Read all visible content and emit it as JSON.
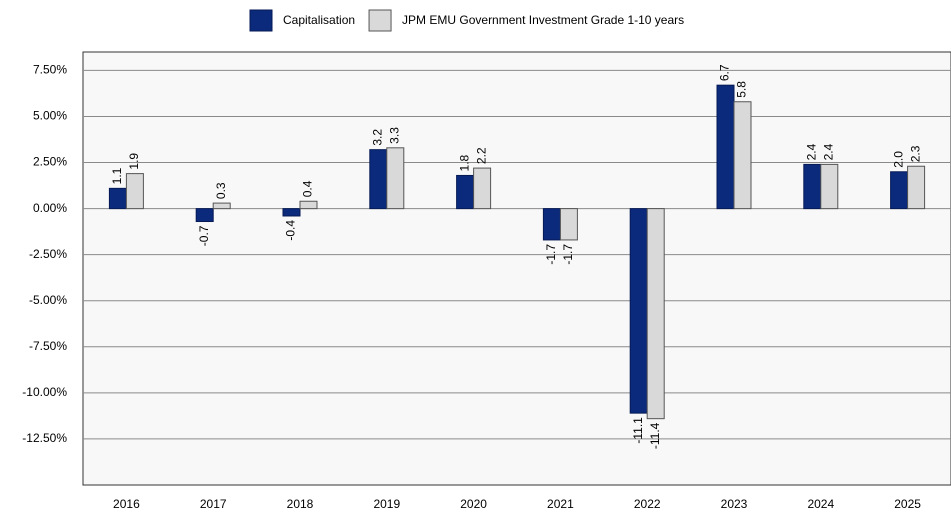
{
  "chart_data": {
    "type": "bar",
    "categories": [
      "2016",
      "2017",
      "2018",
      "2019",
      "2020",
      "2021",
      "2022",
      "2023",
      "2024",
      "2025"
    ],
    "series": [
      {
        "name": "Capitalisation",
        "color": "#0b2a7c",
        "values": [
          1.1,
          -0.7,
          -0.4,
          3.2,
          1.8,
          -1.7,
          -11.1,
          6.7,
          2.4,
          2.0
        ],
        "value_labels": [
          "1.1",
          "-0.7",
          "-0.4",
          "3.2",
          "1.8",
          "-1.7",
          "-11.1",
          "6.7",
          "2.4",
          "2.0"
        ]
      },
      {
        "name": "JPM EMU Government Investment Grade 1-10 years",
        "color": "#d9d9d9",
        "values": [
          1.9,
          0.3,
          0.4,
          3.3,
          2.2,
          -1.7,
          -11.4,
          5.8,
          2.4,
          2.3
        ],
        "value_labels": [
          "1.9",
          "0.3",
          "0.4",
          "3.3",
          "2.2",
          "-1.7",
          "-11.4",
          "5.8",
          "2.4",
          "2.3"
        ]
      }
    ],
    "ylim": [
      -15,
      8.5
    ],
    "yticks": [
      {
        "value": -12.5,
        "label": "-12.50%"
      },
      {
        "value": -10,
        "label": "-10.00%"
      },
      {
        "value": -7.5,
        "label": "-7.50%"
      },
      {
        "value": -5,
        "label": "-5.00%"
      },
      {
        "value": -2.5,
        "label": "-2.50%"
      },
      {
        "value": 0,
        "label": "0.00%"
      },
      {
        "value": 2.5,
        "label": "2.50%"
      },
      {
        "value": 5,
        "label": "5.00%"
      },
      {
        "value": 7.5,
        "label": "7.50%"
      }
    ],
    "grid": true,
    "legend": "top"
  }
}
